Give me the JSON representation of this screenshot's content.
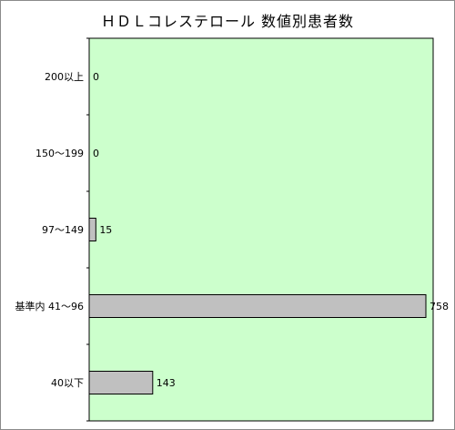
{
  "chart_data": {
    "type": "bar",
    "orientation": "horizontal",
    "title": "ＨＤＬコレステロール 数値別患者数",
    "categories": [
      "200以上",
      "150〜199",
      "97〜149",
      "基準内 41〜96",
      "40以下"
    ],
    "values": [
      0,
      0,
      15,
      758,
      143
    ],
    "xlim": [
      0,
      758
    ],
    "grid": false,
    "legend": "none",
    "colors": {
      "plot_background": "#ccffcc",
      "bar_fill": "#c0c0c0",
      "bar_stroke": "#000000"
    }
  }
}
